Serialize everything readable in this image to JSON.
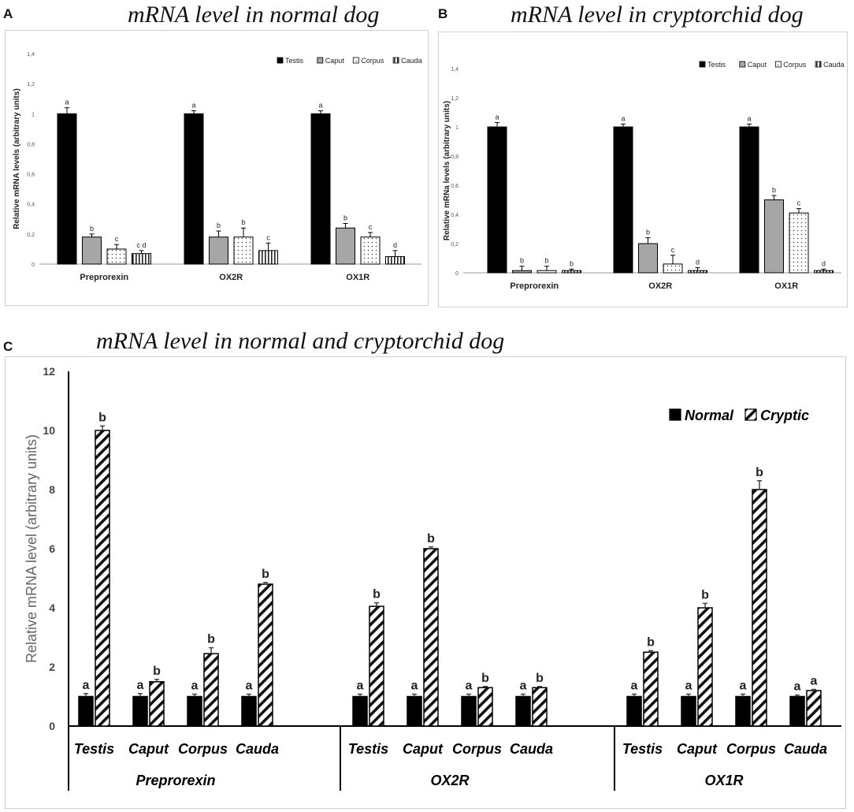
{
  "panels": {
    "a": {
      "letter": "A",
      "title": "mRNA level in normal dog"
    },
    "b": {
      "letter": "B",
      "title": "mRNA level in cryptorchid dog"
    },
    "c": {
      "letter": "C",
      "title": "mRNA level in normal and cryptorchid dog"
    }
  },
  "colors": {
    "bar_fill": "#000000",
    "caput_fill": "#a6a6a6",
    "axis": "#888888",
    "text": "#222222"
  },
  "chart_data": [
    {
      "id": "A",
      "type": "bar",
      "title": "mRNA level in normal dog",
      "xlabel": "",
      "ylabel": "Relative mRNA levels (arbitrary units)",
      "ylim": [
        0,
        1.4
      ],
      "yticks": [
        "0",
        "0,2",
        "0,4",
        "0,6",
        "0,8",
        "1",
        "1,2",
        "1,4"
      ],
      "categories": [
        "Preprorexin",
        "OX2R",
        "OX1R"
      ],
      "legend_position": "top-right",
      "series": [
        {
          "name": "Testis",
          "pattern": "solid",
          "values": [
            1.0,
            1.0,
            1.0
          ],
          "errors": [
            0.04,
            0.02,
            0.02
          ],
          "letters": [
            "a",
            "a",
            "a"
          ]
        },
        {
          "name": "Caput",
          "pattern": "gray",
          "values": [
            0.18,
            0.18,
            0.24
          ],
          "errors": [
            0.02,
            0.04,
            0.03
          ],
          "letters": [
            "b",
            "b",
            "b"
          ]
        },
        {
          "name": "Corpus",
          "pattern": "dots",
          "values": [
            0.1,
            0.18,
            0.18
          ],
          "errors": [
            0.03,
            0.06,
            0.03
          ],
          "letters": [
            "c",
            "b",
            "c"
          ]
        },
        {
          "name": "Cauda",
          "pattern": "vlines",
          "values": [
            0.07,
            0.09,
            0.05
          ],
          "errors": [
            0.02,
            0.05,
            0.04
          ],
          "letters": [
            "c d",
            "c",
            "d"
          ]
        }
      ]
    },
    {
      "id": "B",
      "type": "bar",
      "title": "mRNA level in cryptorchid dog",
      "xlabel": "",
      "ylabel": "Relative mRNa levels (arbitrary units)",
      "ylim": [
        0,
        1.4
      ],
      "yticks": [
        "0",
        "0,2",
        "0,4",
        "0,6",
        "0,8",
        "1",
        "1,2",
        "1,4"
      ],
      "categories": [
        "Preprorexin",
        "OX2R",
        "OX1R"
      ],
      "legend_position": "top-right",
      "series": [
        {
          "name": "Testis",
          "pattern": "solid",
          "values": [
            1.0,
            1.0,
            1.0
          ],
          "errors": [
            0.03,
            0.02,
            0.02
          ],
          "letters": [
            "a",
            "a",
            "a"
          ]
        },
        {
          "name": "Caput",
          "pattern": "gray",
          "values": [
            0.015,
            0.2,
            0.5
          ],
          "errors": [
            0.03,
            0.04,
            0.03
          ],
          "letters": [
            "b",
            "b",
            "b"
          ]
        },
        {
          "name": "Corpus",
          "pattern": "dots",
          "values": [
            0.015,
            0.06,
            0.41
          ],
          "errors": [
            0.03,
            0.06,
            0.03
          ],
          "letters": [
            "b",
            "c",
            "c"
          ]
        },
        {
          "name": "Cauda",
          "pattern": "vlines",
          "values": [
            0.015,
            0.015,
            0.015
          ],
          "errors": [
            0.01,
            0.02,
            0.01
          ],
          "letters": [
            "b",
            "d",
            "d"
          ]
        }
      ]
    },
    {
      "id": "C",
      "type": "bar",
      "title": "mRNA level in normal and cryptorchid dog",
      "xlabel": "",
      "ylabel": "Relative mRNA level (arbitrary units)",
      "ylim": [
        0,
        12
      ],
      "yticks": [
        "0",
        "2",
        "4",
        "6",
        "8",
        "10",
        "12"
      ],
      "groups": [
        "Preprorexin",
        "OX2R",
        "OX1R"
      ],
      "categories": [
        "Testis",
        "Caput",
        "Corpus",
        "Cauda"
      ],
      "legend_position": "top-right",
      "series": [
        {
          "name": "Normal",
          "pattern": "solid",
          "values": [
            [
              1,
              1,
              1,
              1
            ],
            [
              1,
              1,
              1,
              1
            ],
            [
              1,
              1,
              1,
              1
            ]
          ],
          "errors": [
            [
              0.1,
              0.1,
              0.08,
              0.08
            ],
            [
              0.08,
              0.08,
              0.08,
              0.08
            ],
            [
              0.08,
              0.08,
              0.08,
              0.05
            ]
          ],
          "letters": [
            [
              "a",
              "a",
              "a",
              "a"
            ],
            [
              "a",
              "a",
              "a",
              "a"
            ],
            [
              "a",
              "a",
              "a",
              "a"
            ]
          ]
        },
        {
          "name": "Cryptic",
          "pattern": "hatch",
          "values": [
            [
              10,
              1.5,
              2.45,
              4.8
            ],
            [
              4.05,
              6.0,
              1.3,
              1.3
            ],
            [
              2.5,
              4.0,
              8.0,
              1.2
            ]
          ],
          "errors": [
            [
              0.15,
              0.08,
              0.2,
              0.06
            ],
            [
              0.12,
              0.06,
              0.04,
              0.04
            ],
            [
              0.05,
              0.15,
              0.3,
              0.04
            ]
          ],
          "letters": [
            [
              "b",
              "b",
              "b",
              "b"
            ],
            [
              "b",
              "b",
              "b",
              "b"
            ],
            [
              "b",
              "b",
              "b",
              "a"
            ]
          ]
        }
      ]
    }
  ]
}
